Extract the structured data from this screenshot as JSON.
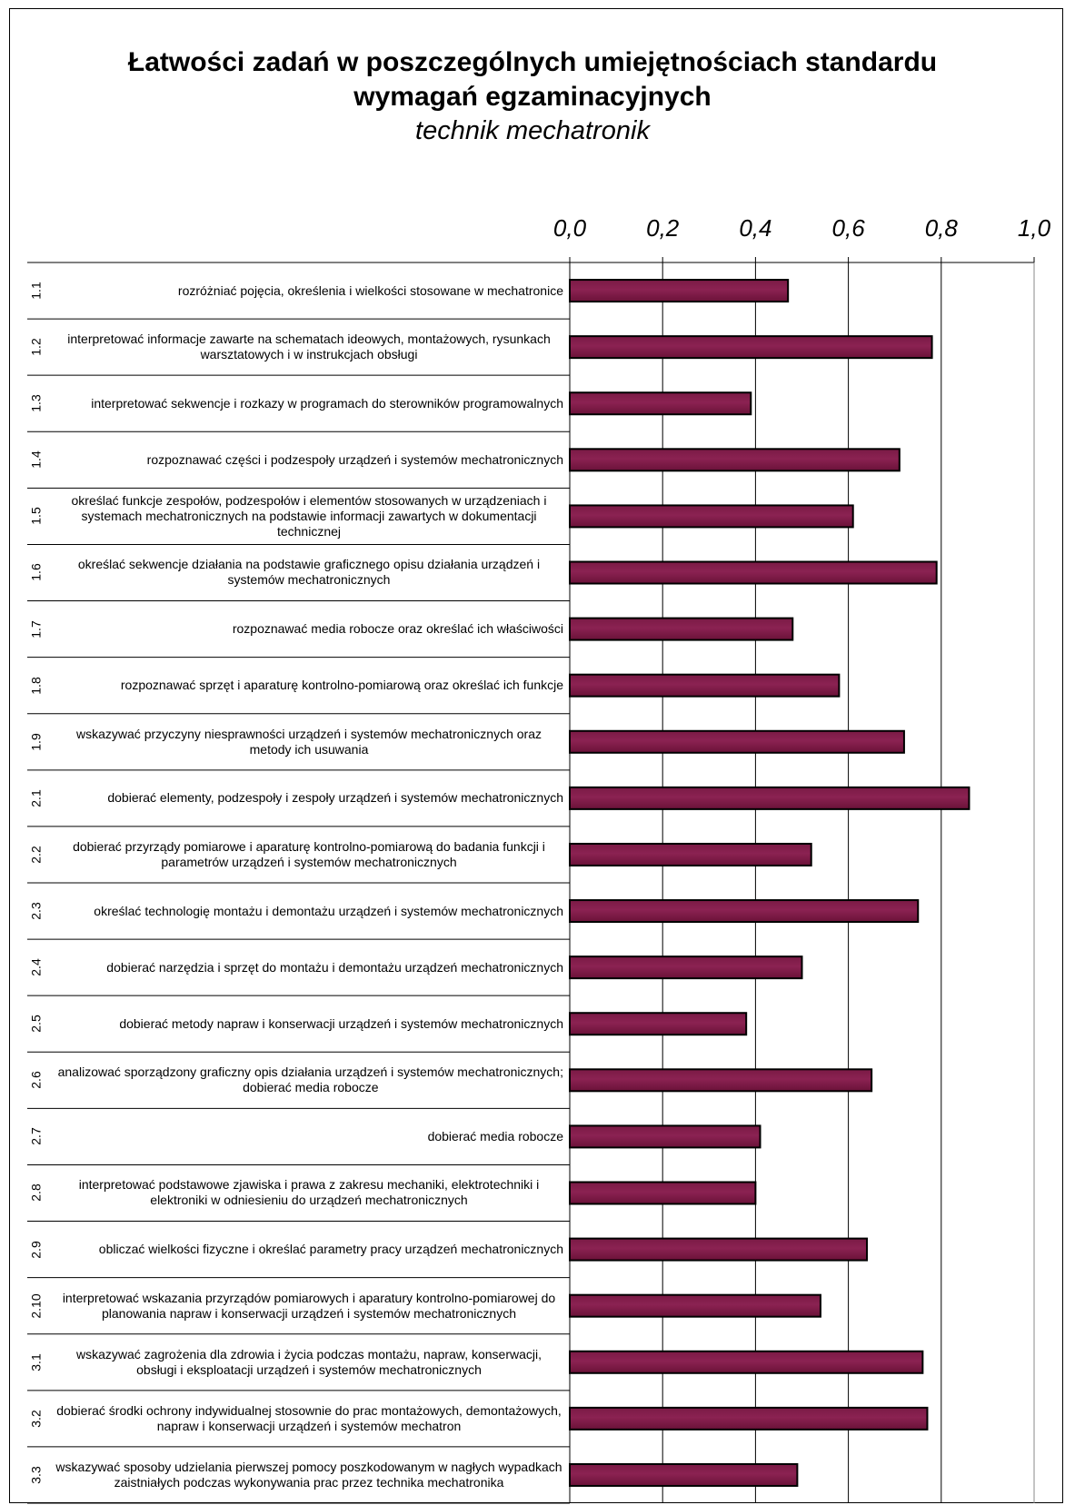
{
  "chart_data": {
    "type": "bar",
    "orientation": "horizontal",
    "title_line1": "Łatwości zadań w poszczególnych umiejętnościach standardu",
    "title_line2": "wymagań egzaminacyjnych",
    "subtitle": "technik mechatronik",
    "xlim": [
      0,
      1
    ],
    "x_ticks": [
      "0,0",
      "0,2",
      "0,4",
      "0,6",
      "0,8",
      "1,0"
    ],
    "grid": true,
    "bar_color": "#8b2252",
    "categories": [
      {
        "code": "1.1",
        "label": "rozróżniać pojęcia, określenia i wielkości stosowane w mechatronice",
        "value": 0.47
      },
      {
        "code": "1.2",
        "label": "interpretować informacje zawarte na schematach ideowych, montażowych, rysunkach warsztatowych i w instrukcjach obsługi",
        "value": 0.78
      },
      {
        "code": "1.3",
        "label": "interpretować sekwencje i rozkazy w programach do sterowników programowalnych",
        "value": 0.39
      },
      {
        "code": "1.4",
        "label": "rozpoznawać części i podzespoły urządzeń i systemów mechatronicznych",
        "value": 0.71
      },
      {
        "code": "1.5",
        "label": "określać funkcje zespołów, podzespołów i elementów stosowanych w urządzeniach i systemach mechatronicznych na podstawie informacji zawartych w dokumentacji technicznej",
        "value": 0.61
      },
      {
        "code": "1.6",
        "label": "określać sekwencje działania na podstawie graficznego opisu działania urządzeń i systemów mechatronicznych",
        "value": 0.79
      },
      {
        "code": "1.7",
        "label": "rozpoznawać media robocze oraz określać ich właściwości",
        "value": 0.48
      },
      {
        "code": "1.8",
        "label": "rozpoznawać sprzęt i aparaturę kontrolno-pomiarową oraz określać ich funkcje",
        "value": 0.58
      },
      {
        "code": "1.9",
        "label": "wskazywać przyczyny niesprawności urządzeń i systemów mechatronicznych oraz metody ich usuwania",
        "value": 0.72
      },
      {
        "code": "2.1",
        "label": "dobierać elementy, podzespoły i zespoły urządzeń i systemów mechatronicznych",
        "value": 0.86
      },
      {
        "code": "2.2",
        "label": "dobierać przyrządy pomiarowe i aparaturę kontrolno-pomiarową do badania funkcji i parametrów urządzeń i systemów mechatronicznych",
        "value": 0.52
      },
      {
        "code": "2.3",
        "label": "określać technologię montażu i demontażu urządzeń i systemów mechatronicznych",
        "value": 0.75
      },
      {
        "code": "2.4",
        "label": "dobierać narzędzia i sprzęt do montażu i demontażu urządzeń mechatronicznych",
        "value": 0.5
      },
      {
        "code": "2.5",
        "label": "dobierać metody napraw i konserwacji urządzeń i systemów mechatronicznych",
        "value": 0.38
      },
      {
        "code": "2.6",
        "label": "analizować sporządzony graficzny opis działania urządzeń i systemów mechatronicznych;\ndobierać media robocze",
        "value": 0.65
      },
      {
        "code": "2.7",
        "label": "dobierać media robocze",
        "value": 0.41
      },
      {
        "code": "2.8",
        "label": "interpretować podstawowe zjawiska i prawa z zakresu mechaniki, elektrotechniki i elektroniki w odniesieniu do urządzeń mechatronicznych",
        "value": 0.4
      },
      {
        "code": "2.9",
        "label": "obliczać wielkości fizyczne i określać parametry pracy urządzeń mechatronicznych",
        "value": 0.64
      },
      {
        "code": "2.10",
        "label": "interpretować wskazania przyrządów pomiarowych i aparatury kontrolno-pomiarowej do planowania napraw i konserwacji urządzeń i systemów mechatronicznych",
        "value": 0.54
      },
      {
        "code": "3.1",
        "label": "wskazywać zagrożenia dla zdrowia i życia podczas montażu, napraw, konserwacji, obsługi i eksploatacji urządzeń i systemów mechatronicznych",
        "value": 0.76
      },
      {
        "code": "3.2",
        "label": "dobierać środki ochrony indywidualnej stosownie do prac montażowych, demontażowych, napraw i konserwacji urządzeń i systemów mechatron",
        "value": 0.77
      },
      {
        "code": "3.3",
        "label": "wskazywać sposoby udzielania pierwszej pomocy poszkodowanym w nagłych wypadkach zaistniałych podczas wykonywania prac przez technika mechatronika",
        "value": 0.49
      }
    ]
  }
}
